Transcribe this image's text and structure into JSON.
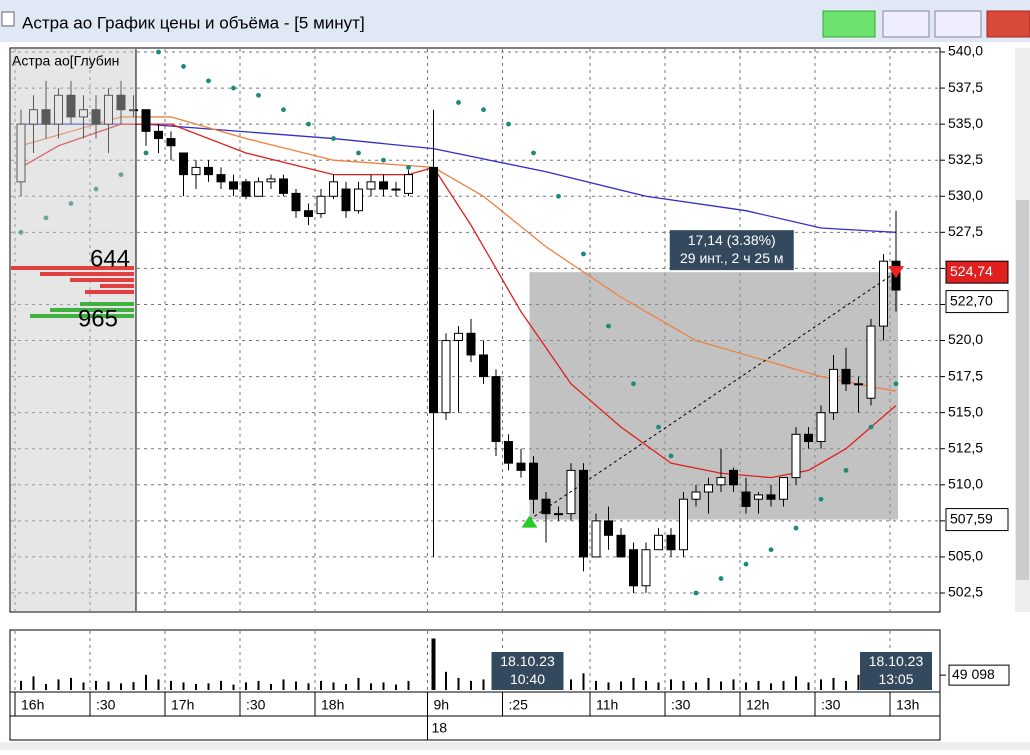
{
  "window": {
    "title": "Астра ао График цены и объёма - [5 минут]"
  },
  "chart_data": {
    "type": "candlestick",
    "depth": {
      "title": "Астра ао[Глубин",
      "ask": "644",
      "bid": "965"
    },
    "categories": [
      "16h",
      null,
      null,
      null,
      null,
      null,
      ":30",
      null,
      null,
      null,
      null,
      null,
      "17h",
      null,
      null,
      null,
      null,
      null,
      ":30",
      null,
      null,
      null,
      null,
      null,
      "18h",
      null,
      null,
      null,
      null,
      null,
      null,
      null,
      null,
      "9h",
      null,
      null,
      null,
      null,
      null,
      ":25",
      null,
      null,
      null,
      null,
      null,
      null,
      "11h",
      null,
      null,
      null,
      null,
      null,
      ":30",
      null,
      null,
      null,
      null,
      null,
      "12h",
      null,
      null,
      null,
      null,
      null,
      ":30",
      null,
      null,
      null,
      null,
      null,
      "13h"
    ],
    "day_label": "18",
    "open": [
      531,
      535,
      536,
      535,
      537,
      535.5,
      536,
      535,
      537,
      536,
      536,
      534.5,
      534,
      533,
      531.5,
      532,
      531.5,
      531,
      531,
      530,
      531,
      531.2,
      530.2,
      529,
      528.8,
      530,
      530.5,
      529,
      530.5,
      531,
      530.5,
      530.2,
      null,
      532,
      515,
      520,
      520.5,
      519,
      517.5,
      513,
      511.5,
      511.5,
      509,
      508,
      508,
      511,
      505,
      507.5,
      506.5,
      505.5,
      503,
      505.5,
      506.5,
      505.5,
      509,
      509.5,
      510,
      511,
      509.5,
      509,
      509.3,
      509,
      510.5,
      513.5,
      513,
      515,
      518,
      517,
      516,
      521,
      525.5
    ],
    "high": [
      536,
      537,
      538,
      537.5,
      538,
      537,
      537,
      537.5,
      538,
      537,
      536,
      535,
      534.5,
      533,
      532.5,
      532.5,
      532,
      531.5,
      531.2,
      531.3,
      531.5,
      531.5,
      530.5,
      529.5,
      530.5,
      531.5,
      531,
      531,
      531.5,
      531.5,
      531,
      531.8,
      null,
      536,
      520.5,
      521,
      521.5,
      520,
      518,
      513.5,
      512.5,
      512,
      509.5,
      508.5,
      511.5,
      511.5,
      508,
      508.5,
      507,
      506,
      506,
      507,
      507,
      509.5,
      510,
      510.5,
      512.5,
      511.2,
      510.5,
      509.5,
      510,
      510.5,
      514,
      514,
      515.5,
      519,
      519.5,
      517.5,
      521.5,
      526,
      529
    ],
    "low": [
      530,
      533,
      534,
      534,
      535,
      534,
      534,
      533,
      535,
      535.5,
      533.5,
      533,
      532.5,
      530,
      530.5,
      531,
      530.5,
      530,
      529.8,
      530,
      530.5,
      530,
      528.5,
      528,
      528.5,
      529.8,
      528.5,
      528.8,
      530,
      530,
      530,
      530,
      null,
      505,
      514.5,
      515,
      518.5,
      517,
      512,
      511,
      510.5,
      508,
      506,
      507.5,
      507.5,
      504,
      505,
      505.5,
      505,
      502.5,
      502.5,
      505.5,
      505,
      505,
      508.5,
      508,
      509.5,
      509.5,
      508,
      508,
      508.5,
      508.5,
      510,
      512.5,
      512.5,
      514.5,
      516.5,
      515,
      515.5,
      520,
      522
    ],
    "close": [
      535,
      536,
      535,
      537,
      535.5,
      536,
      535,
      537,
      536,
      536,
      534.5,
      534,
      533.5,
      531.5,
      532,
      531.5,
      531,
      530.5,
      530,
      531,
      531.2,
      530.2,
      529,
      528.6,
      530,
      531,
      529,
      530.5,
      531,
      530.5,
      530.5,
      531.5,
      null,
      515,
      520,
      520.5,
      519,
      517.5,
      513,
      511.5,
      511,
      509,
      508,
      508,
      511,
      505,
      507.5,
      506.5,
      505,
      503,
      505.5,
      506.5,
      505.5,
      509,
      509.5,
      510,
      510.5,
      510,
      508.5,
      509.3,
      509,
      510.5,
      513.5,
      513,
      515,
      518,
      517,
      517,
      521,
      525.5,
      523.5
    ],
    "volume": [
      30000,
      45000,
      20000,
      35000,
      40000,
      25000,
      30000,
      28000,
      22000,
      26000,
      50000,
      35000,
      30000,
      25000,
      20000,
      22000,
      30000,
      18000,
      25000,
      30000,
      20000,
      35000,
      28000,
      22000,
      30000,
      25000,
      20000,
      40000,
      22000,
      25000,
      18000,
      30000,
      null,
      170000,
      60000,
      40000,
      30000,
      35000,
      30000,
      25000,
      20000,
      45000,
      30000,
      25000,
      35000,
      55000,
      30000,
      25000,
      28000,
      40000,
      30000,
      25000,
      35000,
      30000,
      25000,
      40000,
      28000,
      35000,
      25000,
      30000,
      22000,
      30000,
      45000,
      25000,
      35000,
      40000,
      30000,
      50000,
      30000,
      45000,
      40000
    ],
    "lines": [
      {
        "color": "#3030c8",
        "x": [
          0,
          10,
          25,
          33,
          42,
          50,
          58,
          64,
          70
        ],
        "values": [
          535,
          535,
          534,
          533.3,
          531.7,
          530,
          529,
          527.8,
          527.5
        ]
      },
      {
        "color": "#f08040",
        "x": [
          0,
          8,
          12,
          18,
          25,
          33,
          37,
          42,
          48,
          54,
          60,
          64,
          68,
          70
        ],
        "values": [
          533.5,
          535.5,
          535.5,
          534,
          532.5,
          532,
          530,
          526.5,
          523,
          520,
          518.5,
          517.5,
          516.8,
          516.5
        ]
      },
      {
        "color": "#e02020",
        "x": [
          0,
          3,
          8,
          12,
          18,
          25,
          31,
          33,
          36,
          40,
          44,
          48,
          52,
          56,
          60,
          63,
          66,
          68,
          70
        ],
        "values": [
          532,
          533.5,
          535,
          535,
          533,
          531.5,
          531.5,
          532,
          528,
          522,
          517,
          514,
          511.5,
          510.8,
          510.5,
          511,
          512.5,
          514,
          515.5
        ]
      }
    ],
    "sar": {
      "color": "#1a8a7a",
      "x": [
        0,
        2,
        4,
        6,
        8,
        10,
        11,
        13,
        15,
        17,
        19,
        21,
        23,
        25,
        27,
        29,
        31,
        35,
        37,
        39,
        41,
        43,
        45,
        47,
        49,
        51,
        52,
        54,
        56,
        58,
        60,
        62,
        64,
        66,
        68,
        70
      ],
      "values": [
        527.5,
        528.5,
        529.5,
        530.5,
        531.5,
        533,
        540,
        539,
        538,
        537.5,
        537,
        536,
        535,
        534,
        533,
        532.5,
        532,
        536.5,
        536,
        535,
        533,
        530,
        526,
        521,
        517,
        514,
        512,
        502.5,
        503.5,
        504.5,
        505.5,
        507,
        509,
        511,
        514,
        517
      ]
    },
    "ylim": [
      502.5,
      540
    ],
    "yticks": [
      {
        "value": 502.5,
        "label": "502,5"
      },
      {
        "value": 505,
        "label": "505,0"
      },
      {
        "value": 507.5,
        "label": "507,5"
      },
      {
        "value": 510,
        "label": "510,0"
      },
      {
        "value": 512.5,
        "label": "512,5"
      },
      {
        "value": 515,
        "label": "515,0"
      },
      {
        "value": 517.5,
        "label": "517,5"
      },
      {
        "value": 520,
        "label": "520,0"
      },
      {
        "value": 522.5,
        "label": "522,5"
      },
      {
        "value": 525,
        "label": "525,0"
      },
      {
        "value": 527.5,
        "label": "527,5"
      },
      {
        "value": 530,
        "label": "530,0"
      },
      {
        "value": 532.5,
        "label": "532,5"
      },
      {
        "value": 535,
        "label": "535,0"
      },
      {
        "value": 537.5,
        "label": "537,5"
      },
      {
        "value": 540,
        "label": "540,0"
      }
    ],
    "vlim": [
      0,
      175000
    ],
    "vticks": [
      {
        "value": 49098,
        "label": "49 098"
      }
    ],
    "price_labels": [
      {
        "value": 524.74,
        "label": "524,74",
        "color": "#e02020"
      },
      {
        "value": 522.7,
        "label": "522,70",
        "color": "#ffffff"
      },
      {
        "value": 507.59,
        "label": "507,59",
        "color": "#ffffff"
      }
    ],
    "measure": {
      "from": 41,
      "to": 70,
      "low": 507.59,
      "high": 524.74,
      "change": "17,14 (3.38%)",
      "span": "29 инт., 2 ч 25 м",
      "start_date": "18.10.23\n10:40",
      "end_date": "18.10.23\n13:05"
    },
    "grid": true
  }
}
